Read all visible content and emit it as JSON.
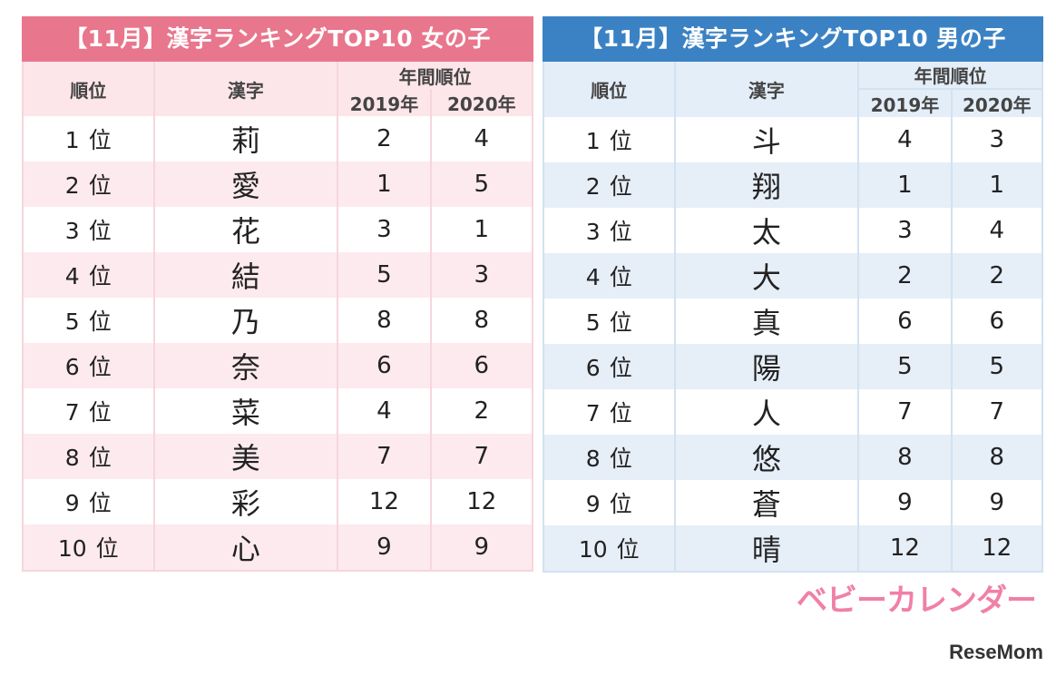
{
  "girls": {
    "title": "【11月】漢字ランキングTOP10 女の子",
    "headers": {
      "rank": "順位",
      "kanji": "漢字",
      "annual": "年間順位",
      "y2019": "2019年",
      "y2020": "2020年"
    },
    "rows": [
      {
        "rank": "1",
        "unit": "位",
        "kanji": "莉",
        "y2019": "2",
        "y2020": "4"
      },
      {
        "rank": "2",
        "unit": "位",
        "kanji": "愛",
        "y2019": "1",
        "y2020": "5"
      },
      {
        "rank": "3",
        "unit": "位",
        "kanji": "花",
        "y2019": "3",
        "y2020": "1"
      },
      {
        "rank": "4",
        "unit": "位",
        "kanji": "結",
        "y2019": "5",
        "y2020": "3"
      },
      {
        "rank": "5",
        "unit": "位",
        "kanji": "乃",
        "y2019": "8",
        "y2020": "8"
      },
      {
        "rank": "6",
        "unit": "位",
        "kanji": "奈",
        "y2019": "6",
        "y2020": "6"
      },
      {
        "rank": "7",
        "unit": "位",
        "kanji": "菜",
        "y2019": "4",
        "y2020": "2"
      },
      {
        "rank": "8",
        "unit": "位",
        "kanji": "美",
        "y2019": "7",
        "y2020": "7"
      },
      {
        "rank": "9",
        "unit": "位",
        "kanji": "彩",
        "y2019": "12",
        "y2020": "12"
      },
      {
        "rank": "10",
        "unit": "位",
        "kanji": "心",
        "y2019": "9",
        "y2020": "9"
      }
    ]
  },
  "boys": {
    "title": "【11月】漢字ランキングTOP10 男の子",
    "headers": {
      "rank": "順位",
      "kanji": "漢字",
      "annual": "年間順位",
      "y2019": "2019年",
      "y2020": "2020年"
    },
    "rows": [
      {
        "rank": "1",
        "unit": "位",
        "kanji": "斗",
        "y2019": "4",
        "y2020": "3"
      },
      {
        "rank": "2",
        "unit": "位",
        "kanji": "翔",
        "y2019": "1",
        "y2020": "1"
      },
      {
        "rank": "3",
        "unit": "位",
        "kanji": "太",
        "y2019": "3",
        "y2020": "4"
      },
      {
        "rank": "4",
        "unit": "位",
        "kanji": "大",
        "y2019": "2",
        "y2020": "2"
      },
      {
        "rank": "5",
        "unit": "位",
        "kanji": "真",
        "y2019": "6",
        "y2020": "6"
      },
      {
        "rank": "6",
        "unit": "位",
        "kanji": "陽",
        "y2019": "5",
        "y2020": "5"
      },
      {
        "rank": "7",
        "unit": "位",
        "kanji": "人",
        "y2019": "7",
        "y2020": "7"
      },
      {
        "rank": "8",
        "unit": "位",
        "kanji": "悠",
        "y2019": "8",
        "y2020": "8"
      },
      {
        "rank": "9",
        "unit": "位",
        "kanji": "蒼",
        "y2019": "9",
        "y2020": "9"
      },
      {
        "rank": "10",
        "unit": "位",
        "kanji": "晴",
        "y2019": "12",
        "y2020": "12"
      }
    ]
  },
  "logos": {
    "brand": "ベビーカレンダー",
    "publisher": "ReseMom"
  },
  "colors": {
    "girls_accent": "#e8768c",
    "boys_accent": "#3b82c4",
    "brand_pink": "#f080a8"
  }
}
